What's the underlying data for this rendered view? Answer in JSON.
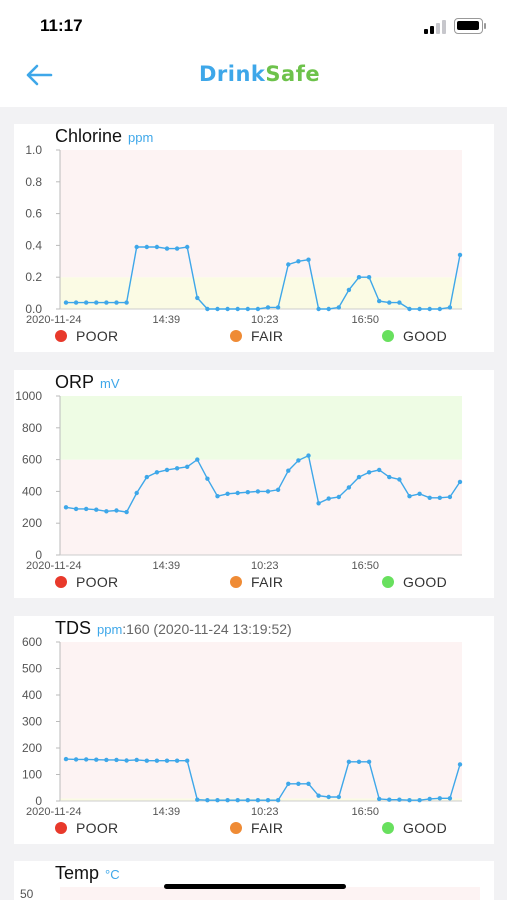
{
  "status_bar": {
    "time": "11:17"
  },
  "app": {
    "logo_part1": "Drink",
    "logo_part2": "Safe",
    "colors": {
      "accent": "#3ea7e9",
      "brand_green": "#6dc24b"
    }
  },
  "legend": [
    {
      "label": "POOR",
      "color": "#e8392b"
    },
    {
      "label": "FAIR",
      "color": "#ef8b35"
    },
    {
      "label": "GOOD",
      "color": "#68e05e"
    }
  ],
  "chart_data": [
    {
      "type": "line",
      "title": "Chlorine",
      "unit": "ppm",
      "x_tick_labels": [
        "2020-11-24",
        "14:39",
        "10:23",
        "16:50"
      ],
      "y_ticks": [
        "0.0",
        "0.2",
        "0.4",
        "0.6",
        "0.8",
        "1.0"
      ],
      "ylim": [
        0,
        1
      ],
      "bands": [
        {
          "zone": "good",
          "from": 0,
          "to": 0.2,
          "color": "#fbfbe4"
        },
        {
          "zone": "poor",
          "from": 0.2,
          "to": 1.0,
          "color": "#fdf3f3"
        }
      ],
      "series": [
        {
          "color": "#3ea7e9",
          "values": [
            0.04,
            0.04,
            0.04,
            0.04,
            0.04,
            0.04,
            0.04,
            0.39,
            0.39,
            0.39,
            0.38,
            0.38,
            0.39,
            0.07,
            0.0,
            0.0,
            0.0,
            0.0,
            0.0,
            0.0,
            0.01,
            0.01,
            0.28,
            0.3,
            0.31,
            0.0,
            0.0,
            0.01,
            0.12,
            0.2,
            0.2,
            0.05,
            0.04,
            0.04,
            0.0,
            0.0,
            0.0,
            0.0,
            0.01,
            0.34
          ]
        }
      ]
    },
    {
      "type": "line",
      "title": "ORP",
      "unit": "mV",
      "x_tick_labels": [
        "2020-11-24",
        "14:39",
        "10:23",
        "16:50"
      ],
      "y_ticks": [
        "0",
        "200",
        "400",
        "600",
        "800",
        "1000"
      ],
      "ylim": [
        0,
        1000
      ],
      "bands": [
        {
          "zone": "poor",
          "from": 0,
          "to": 600,
          "color": "#fdf3f3"
        },
        {
          "zone": "good",
          "from": 600,
          "to": 1000,
          "color": "#eefce4"
        }
      ],
      "series": [
        {
          "color": "#3ea7e9",
          "values": [
            300,
            290,
            290,
            285,
            275,
            280,
            270,
            390,
            490,
            520,
            535,
            545,
            555,
            600,
            480,
            370,
            385,
            390,
            395,
            400,
            400,
            410,
            530,
            595,
            625,
            325,
            355,
            365,
            425,
            490,
            520,
            535,
            490,
            475,
            370,
            385,
            360,
            360,
            365,
            460
          ]
        }
      ]
    },
    {
      "type": "line",
      "title": "TDS",
      "unit": "ppm",
      "current_reading": ":160 (2020-11-24 13:19:52)",
      "x_tick_labels": [
        "2020-11-24",
        "14:39",
        "10:23",
        "16:50"
      ],
      "y_ticks": [
        "0",
        "100",
        "200",
        "300",
        "400",
        "500",
        "600"
      ],
      "ylim": [
        0,
        600
      ],
      "bands": [
        {
          "zone": "good",
          "from": 0,
          "to": 10,
          "color": "#fbfbe4"
        },
        {
          "zone": "poor",
          "from": 10,
          "to": 600,
          "color": "#fdf3f3"
        }
      ],
      "series": [
        {
          "color": "#3ea7e9",
          "values": [
            158,
            157,
            157,
            156,
            155,
            155,
            153,
            155,
            152,
            152,
            152,
            152,
            152,
            5,
            3,
            3,
            3,
            3,
            3,
            3,
            3,
            3,
            65,
            65,
            65,
            20,
            15,
            15,
            148,
            148,
            148,
            8,
            5,
            5,
            3,
            3,
            8,
            10,
            10,
            138
          ]
        }
      ]
    },
    {
      "type": "line",
      "title": "Temp",
      "unit": "°C",
      "y_ticks": [
        "50"
      ],
      "series": []
    }
  ]
}
